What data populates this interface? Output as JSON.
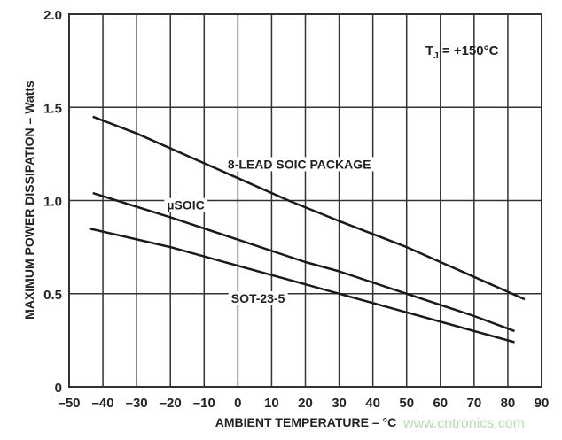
{
  "chart_data": {
    "type": "line",
    "title": "",
    "xlabel": "AMBIENT TEMPERATURE – °C",
    "ylabel": "MAXIMUM POWER DISSIPATION – Watts",
    "xlim": [
      -50,
      90
    ],
    "ylim": [
      0,
      2.0
    ],
    "xticks": [
      -50,
      -40,
      -30,
      -20,
      -10,
      0,
      10,
      20,
      30,
      40,
      50,
      60,
      70,
      80,
      90
    ],
    "xtick_labels": [
      "–50",
      "–40",
      "–30",
      "–20",
      "–10",
      "0",
      "10",
      "20",
      "30",
      "40",
      "50",
      "60",
      "70",
      "80",
      "90"
    ],
    "yticks": [
      0,
      0.5,
      1.0,
      1.5,
      2.0
    ],
    "ytick_labels": [
      "0",
      "0.5",
      "1.0",
      "1.5",
      "2.0"
    ],
    "grid": true,
    "annotation": "T_J = +150°C",
    "series": [
      {
        "name": "8-LEAD SOIC PACKAGE",
        "x": [
          -43,
          -30,
          -10,
          0,
          15,
          30,
          50,
          70,
          80,
          85
        ],
        "y": [
          1.45,
          1.36,
          1.2,
          1.12,
          1.0,
          0.89,
          0.75,
          0.59,
          0.51,
          0.47
        ],
        "label_at": [
          -3,
          1.2
        ]
      },
      {
        "name": "µSOIC",
        "x": [
          -43,
          -20,
          0,
          20,
          30,
          50,
          70,
          82
        ],
        "y": [
          1.04,
          0.91,
          0.79,
          0.67,
          0.62,
          0.5,
          0.38,
          0.3
        ],
        "label_at": [
          -21,
          0.98
        ]
      },
      {
        "name": "SOT-23-5",
        "x": [
          -44,
          -20,
          0,
          20,
          30,
          50,
          70,
          82
        ],
        "y": [
          0.85,
          0.75,
          0.65,
          0.55,
          0.5,
          0.4,
          0.3,
          0.24
        ],
        "label_at": [
          -2,
          0.48
        ]
      }
    ]
  },
  "annotation_parts": {
    "t": "T",
    "sub": "J",
    "rest": " = +150°C"
  },
  "watermark": "www.cntronics.com",
  "colors": {
    "line": "#1a1a1a",
    "grid": "#333333",
    "watermark": "#b6dcb0"
  }
}
